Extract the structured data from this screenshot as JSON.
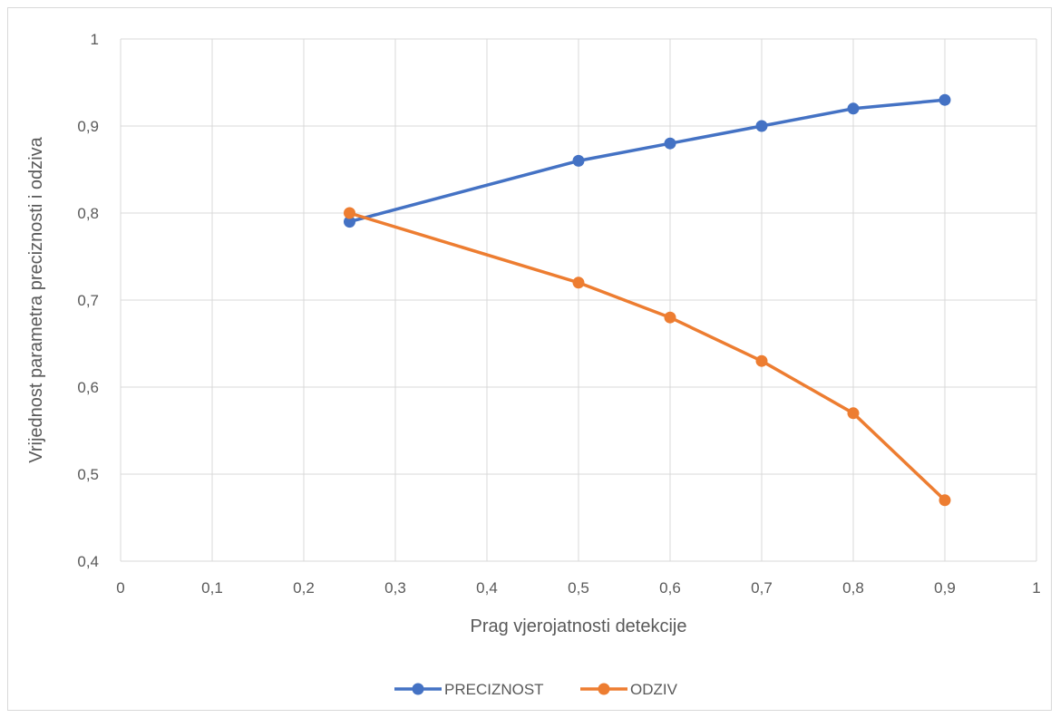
{
  "chart_data": {
    "type": "line",
    "title": "",
    "xlabel": "Prag vjerojatnosti detekcije",
    "ylabel": "Vrijednost parametra preciznosti i odziva",
    "xlim": [
      0,
      1
    ],
    "ylim": [
      0.4,
      1
    ],
    "x_ticks": [
      "0",
      "0,1",
      "0,2",
      "0,3",
      "0,4",
      "0,5",
      "0,6",
      "0,7",
      "0,8",
      "0,9",
      "1"
    ],
    "y_ticks": [
      "0,4",
      "0,5",
      "0,6",
      "0,7",
      "0,8",
      "0,9",
      "1"
    ],
    "grid": true,
    "legend_position": "bottom",
    "x": [
      0.25,
      0.5,
      0.6,
      0.7,
      0.8,
      0.9
    ],
    "series": [
      {
        "name": "PRECIZNOST",
        "color": "#4472c4",
        "values": [
          0.79,
          0.86,
          0.88,
          0.9,
          0.92,
          0.93
        ]
      },
      {
        "name": "ODZIV",
        "color": "#ed7d31",
        "values": [
          0.8,
          0.72,
          0.68,
          0.63,
          0.57,
          0.47
        ]
      }
    ]
  }
}
